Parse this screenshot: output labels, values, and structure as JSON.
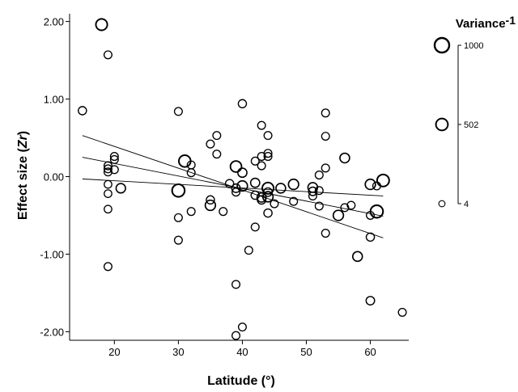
{
  "chart_data": {
    "type": "scatter",
    "xlabel": "Latitude (°)",
    "ylabel": "Effect size (Zr)",
    "ylabel_main": "Effect size (",
    "ylabel_italic": "Zr",
    "ylabel_close": ")",
    "xlim": [
      13,
      66
    ],
    "ylim": [
      -2.1,
      2.1
    ],
    "x_ticks": [
      20,
      30,
      40,
      50,
      60
    ],
    "x_tick_labels": [
      "20",
      "30",
      "40",
      "50",
      "60"
    ],
    "y_ticks": [
      2,
      1,
      0,
      -1,
      -2
    ],
    "y_tick_labels": [
      "2.00",
      "1.00",
      "0.00",
      "-1.00",
      "-2.00"
    ],
    "grid": false,
    "legend": {
      "placement": "right",
      "title": "Variance",
      "title_superscript": "-1",
      "entries": [
        {
          "label": "1000",
          "value": 1000
        },
        {
          "label": "502",
          "value": 502
        },
        {
          "label": "4",
          "value": 4
        }
      ]
    },
    "fit_lines": [
      {
        "x": [
          15,
          62
        ],
        "y": [
          -0.03,
          -0.25
        ]
      },
      {
        "x": [
          15,
          62
        ],
        "y": [
          0.25,
          -0.51
        ]
      },
      {
        "x": [
          15,
          62
        ],
        "y": [
          0.53,
          -0.79
        ]
      }
    ],
    "points": [
      {
        "x": 15,
        "y": 0.85,
        "w": 80
      },
      {
        "x": 18,
        "y": 1.96,
        "w": 420
      },
      {
        "x": 19,
        "y": 1.57,
        "w": 60
      },
      {
        "x": 19,
        "y": 0.14,
        "w": 60
      },
      {
        "x": 19,
        "y": 0.1,
        "w": 60
      },
      {
        "x": 19,
        "y": 0.06,
        "w": 60
      },
      {
        "x": 19,
        "y": -0.1,
        "w": 50
      },
      {
        "x": 19,
        "y": -0.22,
        "w": 50
      },
      {
        "x": 19,
        "y": -0.42,
        "w": 50
      },
      {
        "x": 19,
        "y": -1.16,
        "w": 60
      },
      {
        "x": 20,
        "y": 0.26,
        "w": 60
      },
      {
        "x": 20,
        "y": 0.22,
        "w": 60
      },
      {
        "x": 20,
        "y": 0.09,
        "w": 60
      },
      {
        "x": 21,
        "y": -0.15,
        "w": 180
      },
      {
        "x": 30,
        "y": 0.84,
        "w": 60
      },
      {
        "x": 30,
        "y": -0.18,
        "w": 600
      },
      {
        "x": 30,
        "y": -0.53,
        "w": 60
      },
      {
        "x": 30,
        "y": -0.82,
        "w": 60
      },
      {
        "x": 31,
        "y": 0.2,
        "w": 480
      },
      {
        "x": 32,
        "y": 0.15,
        "w": 60
      },
      {
        "x": 32,
        "y": 0.05,
        "w": 60
      },
      {
        "x": 32,
        "y": -0.45,
        "w": 60
      },
      {
        "x": 35,
        "y": 0.42,
        "w": 60
      },
      {
        "x": 35,
        "y": -0.3,
        "w": 80
      },
      {
        "x": 35,
        "y": -0.37,
        "w": 260
      },
      {
        "x": 36,
        "y": 0.53,
        "w": 60
      },
      {
        "x": 36,
        "y": 0.29,
        "w": 60
      },
      {
        "x": 37,
        "y": -0.45,
        "w": 60
      },
      {
        "x": 38,
        "y": -0.09,
        "w": 80
      },
      {
        "x": 39,
        "y": 0.13,
        "w": 380
      },
      {
        "x": 39,
        "y": -0.15,
        "w": 100
      },
      {
        "x": 39,
        "y": -0.2,
        "w": 60
      },
      {
        "x": 39,
        "y": -1.39,
        "w": 60
      },
      {
        "x": 39,
        "y": -2.05,
        "w": 60
      },
      {
        "x": 40,
        "y": 0.94,
        "w": 80
      },
      {
        "x": 40,
        "y": 0.05,
        "w": 150
      },
      {
        "x": 40,
        "y": -0.12,
        "w": 260
      },
      {
        "x": 40,
        "y": -1.94,
        "w": 60
      },
      {
        "x": 41,
        "y": -0.95,
        "w": 60
      },
      {
        "x": 42,
        "y": 0.2,
        "w": 60
      },
      {
        "x": 42,
        "y": -0.08,
        "w": 150
      },
      {
        "x": 42,
        "y": -0.24,
        "w": 80
      },
      {
        "x": 42,
        "y": -0.65,
        "w": 60
      },
      {
        "x": 43,
        "y": 0.66,
        "w": 60
      },
      {
        "x": 43,
        "y": 0.26,
        "w": 60
      },
      {
        "x": 43,
        "y": 0.14,
        "w": 60
      },
      {
        "x": 43,
        "y": -0.27,
        "w": 150
      },
      {
        "x": 43,
        "y": -0.3,
        "w": 100
      },
      {
        "x": 44,
        "y": 0.53,
        "w": 60
      },
      {
        "x": 44,
        "y": 0.3,
        "w": 60
      },
      {
        "x": 44,
        "y": 0.26,
        "w": 60
      },
      {
        "x": 44,
        "y": -0.15,
        "w": 420
      },
      {
        "x": 44,
        "y": -0.2,
        "w": 100
      },
      {
        "x": 44,
        "y": -0.26,
        "w": 260
      },
      {
        "x": 44,
        "y": -0.47,
        "w": 80
      },
      {
        "x": 45,
        "y": -0.35,
        "w": 60
      },
      {
        "x": 46,
        "y": -0.15,
        "w": 200
      },
      {
        "x": 48,
        "y": -0.1,
        "w": 260
      },
      {
        "x": 48,
        "y": -0.32,
        "w": 60
      },
      {
        "x": 51,
        "y": -0.14,
        "w": 200
      },
      {
        "x": 51,
        "y": -0.19,
        "w": 100
      },
      {
        "x": 51,
        "y": -0.25,
        "w": 60
      },
      {
        "x": 52,
        "y": 0.02,
        "w": 60
      },
      {
        "x": 52,
        "y": -0.18,
        "w": 60
      },
      {
        "x": 52,
        "y": -0.38,
        "w": 60
      },
      {
        "x": 53,
        "y": 0.82,
        "w": 60
      },
      {
        "x": 53,
        "y": 0.52,
        "w": 60
      },
      {
        "x": 53,
        "y": 0.11,
        "w": 60
      },
      {
        "x": 53,
        "y": -0.73,
        "w": 60
      },
      {
        "x": 55,
        "y": -0.5,
        "w": 260
      },
      {
        "x": 56,
        "y": 0.24,
        "w": 200
      },
      {
        "x": 56,
        "y": -0.4,
        "w": 60
      },
      {
        "x": 57,
        "y": -0.37,
        "w": 60
      },
      {
        "x": 58,
        "y": -1.03,
        "w": 200
      },
      {
        "x": 60,
        "y": -0.1,
        "w": 260
      },
      {
        "x": 60,
        "y": -0.5,
        "w": 60
      },
      {
        "x": 60,
        "y": -0.78,
        "w": 80
      },
      {
        "x": 60,
        "y": -1.6,
        "w": 100
      },
      {
        "x": 61,
        "y": -0.45,
        "w": 600
      },
      {
        "x": 61,
        "y": -0.12,
        "w": 60
      },
      {
        "x": 62,
        "y": -0.05,
        "w": 520
      },
      {
        "x": 65,
        "y": -1.75,
        "w": 60
      }
    ]
  }
}
